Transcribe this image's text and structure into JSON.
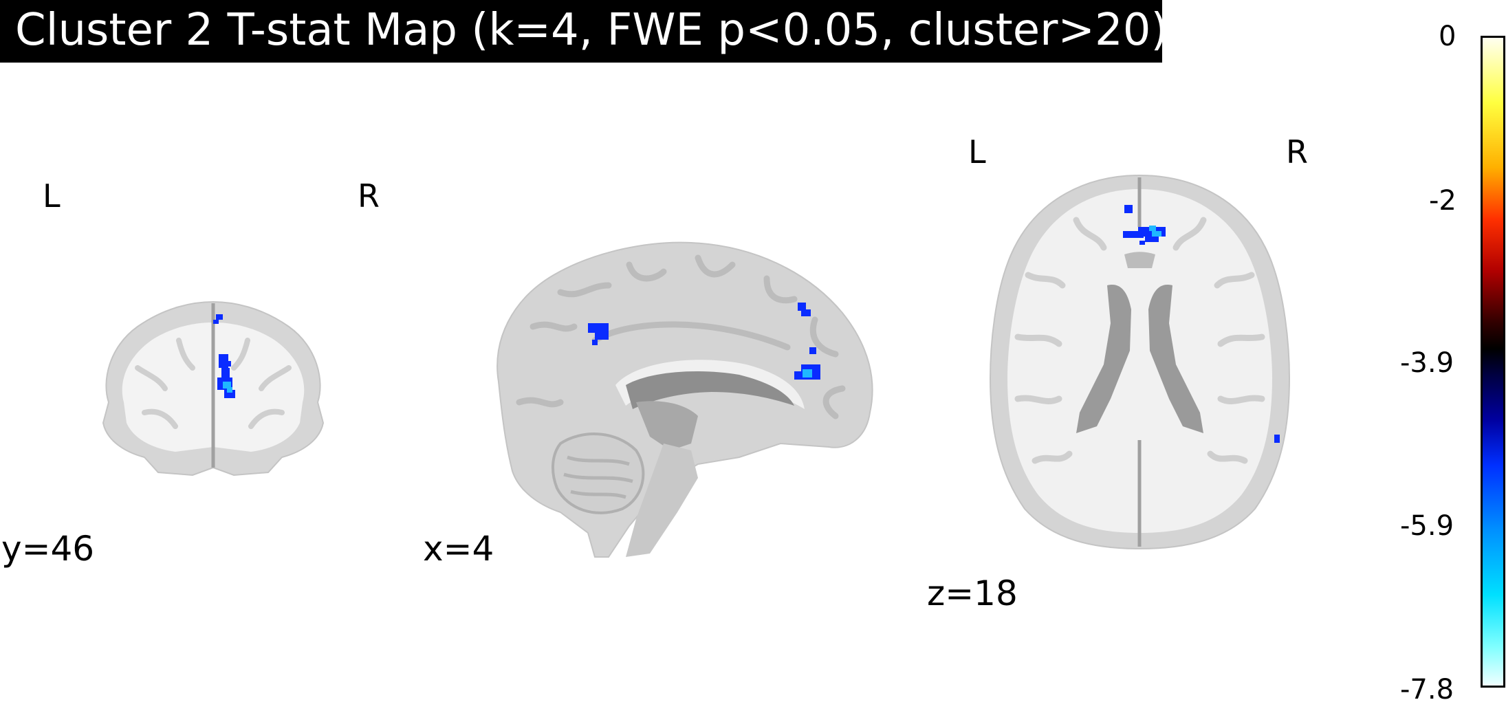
{
  "title": "Cluster 2 T-stat Map (k=4, FWE p<0.05, cluster>20)",
  "views": [
    {
      "id": "coronal",
      "left_label": "L",
      "right_label": "R",
      "coord_label": "y=46"
    },
    {
      "id": "sagittal",
      "coord_label": "x=4"
    },
    {
      "id": "axial",
      "left_label": "L",
      "right_label": "R",
      "coord_label": "z=18"
    }
  ],
  "colorbar": {
    "ticks": [
      "0",
      "-2",
      "-3.9",
      "-5.9",
      "-7.8"
    ],
    "range": [
      -7.8,
      0
    ],
    "colormap": [
      "#fffff0",
      "#ffff40",
      "#ffb000",
      "#ff3000",
      "#b00000",
      "#000000",
      "#0000a0",
      "#0030ff",
      "#0090ff",
      "#00e0ff",
      "#f0ffff"
    ]
  },
  "colors": {
    "brain_gray": "#d8d8d8",
    "brain_light": "#f2f2f2",
    "ventricle_gray": "#9a9a9a",
    "blob_dark_blue": "#0a2cff",
    "blob_light_blue": "#1fb8ff"
  }
}
